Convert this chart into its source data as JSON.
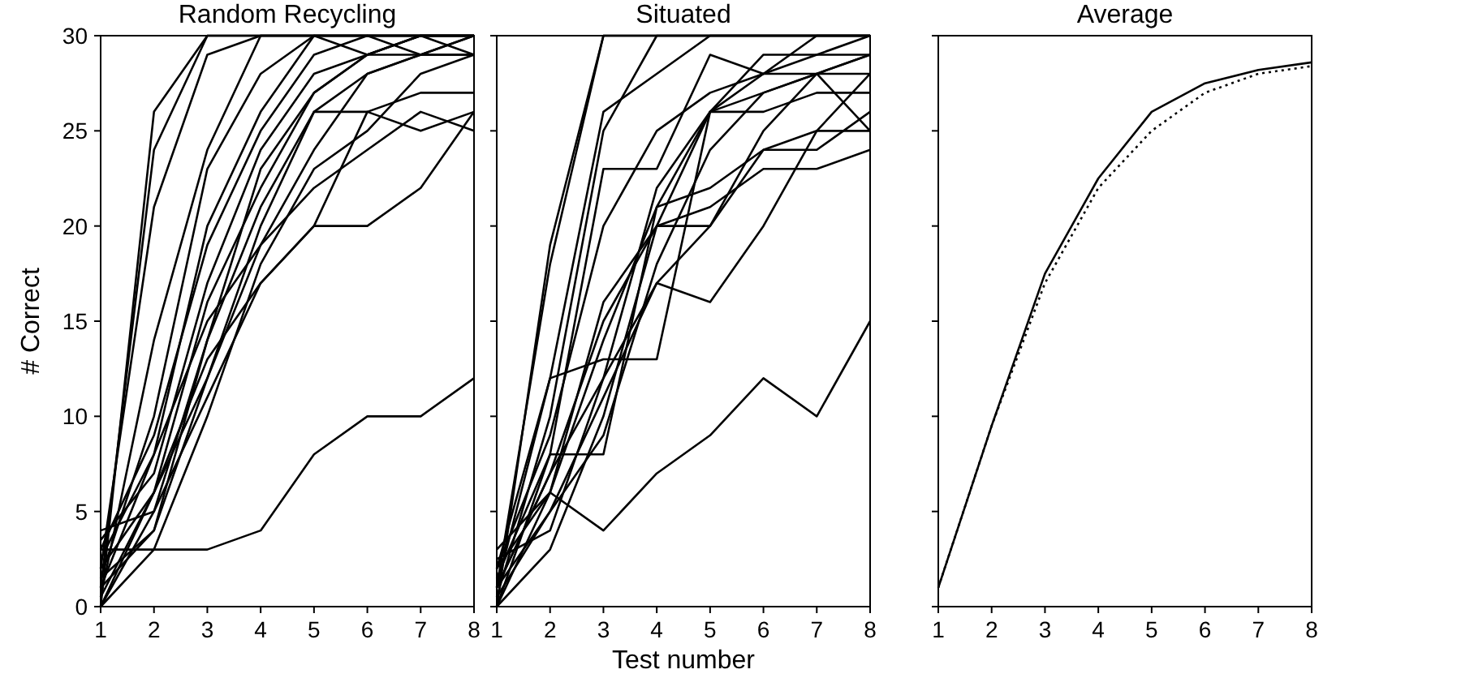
{
  "chart_data": [
    {
      "type": "line",
      "title": "Random Recycling",
      "ylabel": "# Correct",
      "x": [
        1,
        2,
        3,
        4,
        5,
        6,
        7,
        8
      ],
      "xlim": [
        1,
        8
      ],
      "xticks": [
        1,
        2,
        3,
        4,
        5,
        6,
        7,
        8
      ],
      "ylim": [
        0,
        30
      ],
      "yticks": [
        0,
        5,
        10,
        15,
        20,
        25,
        30
      ],
      "grid": false,
      "marker": "none",
      "series": [
        {
          "color": "#000000",
          "values": [
            0,
            26,
            30,
            30,
            30,
            30,
            30,
            30
          ]
        },
        {
          "color": "#000000",
          "values": [
            1,
            24,
            30,
            30,
            30,
            30,
            30,
            30
          ]
        },
        {
          "color": "#000000",
          "values": [
            2,
            21,
            29,
            30,
            30,
            30,
            30,
            30
          ]
        },
        {
          "color": "#000000",
          "values": [
            0.5,
            14,
            24,
            30,
            30,
            30,
            30,
            30
          ]
        },
        {
          "color": "#000000",
          "values": [
            1.5,
            10,
            23,
            28,
            30,
            30,
            30,
            30
          ]
        },
        {
          "color": "#000000",
          "values": [
            2.5,
            8,
            20,
            26,
            30,
            29,
            30,
            30
          ]
        },
        {
          "color": "#000000",
          "values": [
            3,
            9,
            19,
            25,
            29,
            30,
            29,
            30
          ]
        },
        {
          "color": "#000000",
          "values": [
            3.5,
            7,
            17,
            24,
            28,
            29,
            30,
            30
          ]
        },
        {
          "color": "#000000",
          "values": [
            2,
            6,
            16,
            22,
            27,
            29,
            30,
            29
          ]
        },
        {
          "color": "#000000",
          "values": [
            4,
            5,
            14,
            21,
            26,
            28,
            29,
            30
          ]
        },
        {
          "color": "#000000",
          "values": [
            1,
            8,
            15,
            19,
            24,
            28,
            29,
            29
          ]
        },
        {
          "color": "#000000",
          "values": [
            0,
            6,
            12,
            20,
            26,
            26,
            27,
            27
          ]
        },
        {
          "color": "#000000",
          "values": [
            0,
            5,
            11,
            17,
            20,
            26,
            25,
            26
          ]
        },
        {
          "color": "#000000",
          "values": [
            1,
            4,
            12,
            19,
            22,
            24,
            26,
            25
          ]
        },
        {
          "color": "#000000",
          "values": [
            0.5,
            6,
            13,
            17,
            20,
            20,
            22,
            26
          ]
        },
        {
          "color": "#000000",
          "values": [
            3,
            3,
            3,
            4,
            8,
            10,
            10,
            12
          ]
        },
        {
          "color": "#000000",
          "values": [
            0,
            3,
            10,
            18,
            23,
            25,
            28,
            29
          ]
        },
        {
          "color": "#000000",
          "values": [
            1.5,
            4,
            14,
            23,
            27,
            29,
            29,
            29
          ]
        }
      ]
    },
    {
      "type": "line",
      "title": "Situated",
      "xlabel": "Test number",
      "x": [
        1,
        2,
        3,
        4,
        5,
        6,
        7,
        8
      ],
      "xlim": [
        1,
        8
      ],
      "xticks": [
        1,
        2,
        3,
        4,
        5,
        6,
        7,
        8
      ],
      "ylim": [
        0,
        30
      ],
      "yticks": [
        0,
        5,
        10,
        15,
        20,
        25,
        30
      ],
      "tick_labels": "x",
      "grid": false,
      "marker": "none",
      "series": [
        {
          "color": "#000000",
          "values": [
            0,
            19,
            30,
            30,
            30,
            30,
            30,
            30
          ]
        },
        {
          "color": "#000000",
          "values": [
            1,
            18,
            30,
            30,
            30,
            30,
            30,
            30
          ]
        },
        {
          "color": "#000000",
          "values": [
            2,
            12,
            26,
            28,
            30,
            30,
            30,
            30
          ]
        },
        {
          "color": "#000000",
          "values": [
            0.5,
            10,
            25,
            30,
            30,
            30,
            30,
            30
          ]
        },
        {
          "color": "#000000",
          "values": [
            1.5,
            8,
            23,
            23,
            29,
            28,
            30,
            30
          ]
        },
        {
          "color": "#000000",
          "values": [
            2,
            9,
            20,
            25,
            27,
            28,
            29,
            29
          ]
        },
        {
          "color": "#000000",
          "values": [
            1,
            12,
            13,
            13,
            26,
            27,
            28,
            29
          ]
        },
        {
          "color": "#000000",
          "values": [
            0,
            8,
            8,
            21,
            26,
            28,
            28,
            25
          ]
        },
        {
          "color": "#000000",
          "values": [
            3,
            6,
            16,
            20,
            20,
            25,
            28,
            28
          ]
        },
        {
          "color": "#000000",
          "values": [
            1,
            7,
            12,
            17,
            16,
            20,
            25,
            25
          ]
        },
        {
          "color": "#000000",
          "values": [
            0,
            6,
            14,
            21,
            22,
            24,
            25,
            28
          ]
        },
        {
          "color": "#000000",
          "values": [
            1,
            5,
            11,
            17,
            20,
            24,
            24,
            26
          ]
        },
        {
          "color": "#000000",
          "values": [
            0,
            3,
            10,
            20,
            26,
            26,
            27,
            27
          ]
        },
        {
          "color": "#000000",
          "values": [
            2,
            6,
            4,
            7,
            9,
            12,
            10,
            15
          ]
        },
        {
          "color": "#000000",
          "values": [
            0.5,
            5,
            9,
            18,
            24,
            27,
            28,
            29
          ]
        },
        {
          "color": "#000000",
          "values": [
            2.5,
            4,
            12,
            22,
            26,
            29,
            29,
            30
          ]
        },
        {
          "color": "#000000",
          "values": [
            1,
            7,
            15,
            20,
            21,
            23,
            23,
            24
          ]
        }
      ]
    },
    {
      "type": "line",
      "title": "Average",
      "x": [
        1,
        2,
        3,
        4,
        5,
        6,
        7,
        8
      ],
      "xlim": [
        1,
        8
      ],
      "xticks": [
        1,
        2,
        3,
        4,
        5,
        6,
        7,
        8
      ],
      "ylim": [
        0,
        30
      ],
      "yticks": [
        0,
        5,
        10,
        15,
        20,
        25,
        30
      ],
      "tick_labels": "x",
      "grid": false,
      "marker": "none",
      "series": [
        {
          "color": "#000000",
          "line_style": "solid",
          "values": [
            1,
            9.5,
            17.5,
            22.5,
            26,
            27.5,
            28.2,
            28.6
          ]
        },
        {
          "color": "#000000",
          "line_style": "dotted",
          "values": [
            1,
            9.5,
            17,
            22,
            25,
            27,
            28,
            28.4
          ]
        }
      ]
    }
  ]
}
